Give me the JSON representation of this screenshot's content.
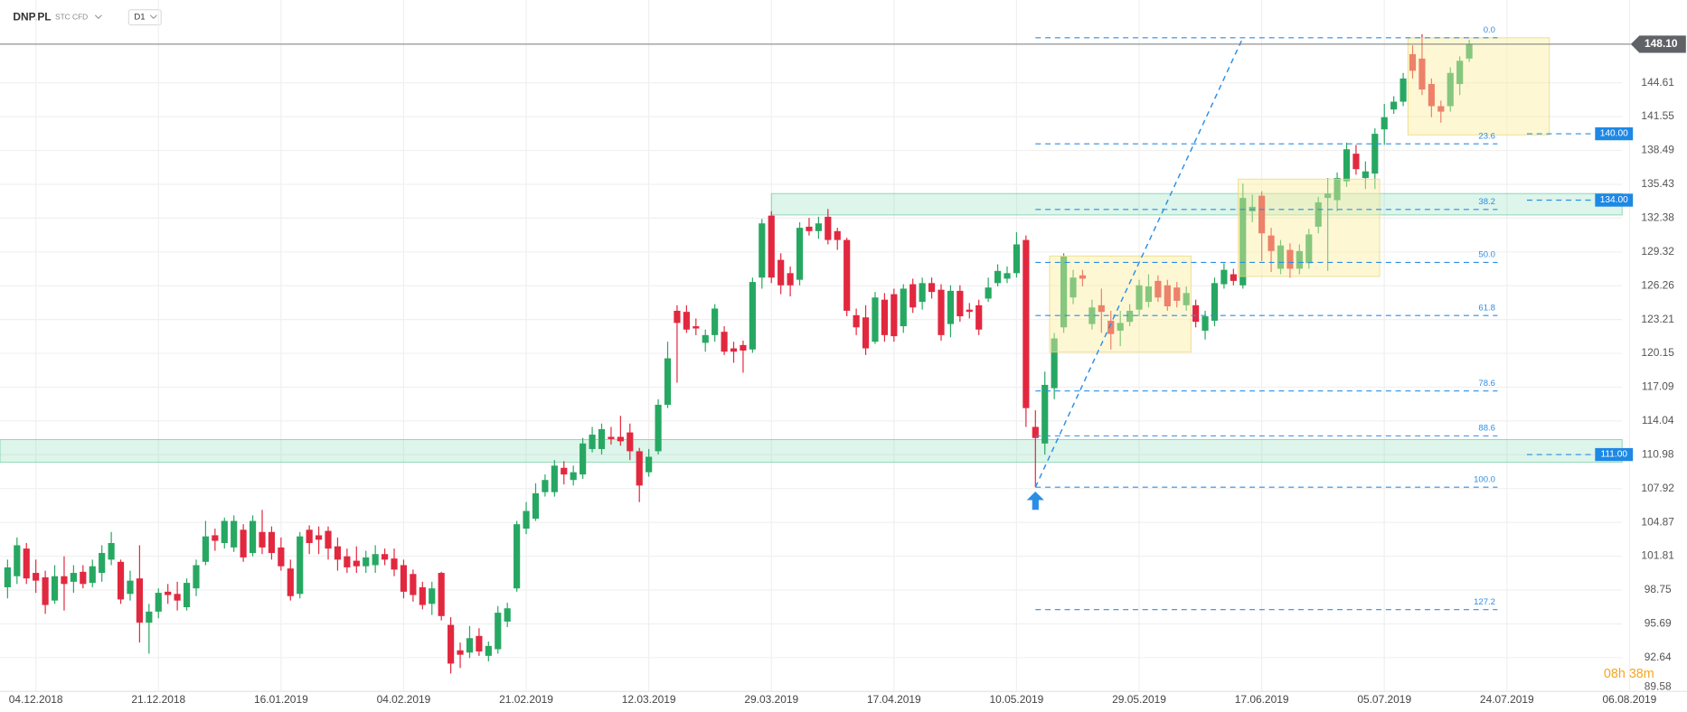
{
  "header": {
    "symbol": "DNP.PL",
    "instrument": "STC CFD",
    "timeframe": "D1",
    "countdown": "08h 38m"
  },
  "chart_data": {
    "type": "candlestick",
    "up_color": "#27a862",
    "down_color": "#e2283f",
    "grid": true,
    "categories": [
      null,
      null,
      null,
      "04.12.2018",
      null,
      null,
      null,
      null,
      null,
      null,
      null,
      null,
      null,
      null,
      null,
      null,
      "21.12.2018",
      null,
      null,
      null,
      null,
      null,
      null,
      null,
      null,
      null,
      null,
      null,
      null,
      "16.01.2019",
      null,
      null,
      null,
      null,
      null,
      null,
      null,
      null,
      null,
      null,
      null,
      null,
      "04.02.2019",
      null,
      null,
      null,
      null,
      null,
      null,
      null,
      null,
      null,
      null,
      null,
      null,
      "21.02.2019",
      null,
      null,
      null,
      null,
      null,
      null,
      null,
      null,
      null,
      null,
      null,
      null,
      "12.03.2019",
      null,
      null,
      null,
      null,
      null,
      null,
      null,
      null,
      null,
      null,
      null,
      null,
      "29.03.2019",
      null,
      null,
      null,
      null,
      null,
      null,
      null,
      null,
      null,
      null,
      null,
      null,
      "17.04.2019",
      null,
      null,
      null,
      null,
      null,
      null,
      null,
      null,
      null,
      null,
      null,
      null,
      "10.05.2019",
      null,
      null,
      null,
      null,
      null,
      null,
      null,
      null,
      null,
      null,
      null,
      null,
      "29.05.2019",
      null,
      null,
      null,
      null,
      null,
      null,
      null,
      null,
      null,
      null,
      null,
      null,
      "17.06.2019",
      null,
      null,
      null,
      null,
      null,
      null,
      null,
      null,
      null,
      null,
      null,
      null,
      "05.07.2019",
      null,
      null,
      null,
      null,
      null,
      null,
      null,
      null,
      null,
      null,
      null,
      null,
      "24.07.2019",
      null,
      null,
      null,
      null,
      null,
      null,
      null,
      null,
      null,
      null,
      null,
      null,
      "06.08.2019"
    ],
    "open": [
      99.0,
      100.0,
      102.5,
      100.3,
      99.9,
      97.8,
      100.0,
      99.5,
      100.4,
      99.4,
      100.3,
      101.5,
      101.3,
      98.4,
      99.8,
      95.8,
      96.8,
      98.6,
      98.4,
      97.2,
      98.9,
      101.3,
      103.7,
      103.0,
      102.6,
      104.2,
      102.1,
      104.0,
      104.0,
      102.6,
      100.7,
      98.4,
      104.2,
      103.7,
      104.1,
      102.7,
      101.8,
      101.4,
      100.9,
      101.0,
      102.0,
      101.6,
      101.0,
      100.2,
      99.0,
      97.5,
      100.3,
      95.6,
      93.3,
      93.1,
      94.6,
      92.8,
      93.4,
      95.9,
      98.9,
      104.3,
      105.2,
      107.6,
      107.6,
      109.8,
      108.7,
      109.2,
      111.5,
      111.5,
      112.6,
      112.6,
      113.0,
      111.3,
      109.4,
      111.3,
      115.5,
      124.0,
      123.9,
      122.6,
      121.1,
      121.8,
      122.1,
      120.6,
      120.9,
      120.5,
      127.0,
      132.6,
      128.6,
      127.4,
      126.8,
      131.6,
      131.2,
      132.5,
      131.2,
      130.4,
      123.6,
      123.4,
      121.2,
      125.0,
      125.5,
      122.6,
      126.4,
      124.8,
      126.5,
      125.9,
      122.8,
      125.8,
      124.1,
      124.5,
      125.1,
      126.5,
      126.9,
      127.4,
      130.4,
      113.5,
      112.0,
      117.0,
      122.5,
      125.2,
      127.2,
      122.8,
      124.5,
      123.1,
      122.2,
      123.0,
      124.1,
      124.8,
      126.7,
      126.3,
      126.1,
      124.5,
      124.5,
      122.2,
      123.1,
      126.4,
      127.3,
      126.3,
      133.0,
      134.4,
      130.8,
      127.8,
      129.5,
      127.8,
      128.3,
      131.6,
      134.2,
      134.0,
      135.7,
      138.2,
      136.0,
      136.4,
      140.4,
      142.2,
      142.9,
      147.2,
      146.8,
      144.5,
      142.5,
      142.5,
      144.5,
      146.8,
      null,
      null,
      null,
      null,
      null,
      null,
      null,
      null,
      null,
      null,
      null,
      null,
      null,
      null,
      null,
      null,
      null
    ],
    "high": [
      101.5,
      103.5,
      103.0,
      101.5,
      100.5,
      101.0,
      101.8,
      101.0,
      101.0,
      101.5,
      102.8,
      104.0,
      101.5,
      100.5,
      102.8,
      97.5,
      98.9,
      99.3,
      99.5,
      99.8,
      101.5,
      105.0,
      104.3,
      105.3,
      105.5,
      104.7,
      105.5,
      106.0,
      104.5,
      103.5,
      101.5,
      104.0,
      104.6,
      104.5,
      104.5,
      103.5,
      102.5,
      102.7,
      102.3,
      102.8,
      102.5,
      102.5,
      101.5,
      100.6,
      99.5,
      99.5,
      100.4,
      96.3,
      94.0,
      95.5,
      95.3,
      94.1,
      97.3,
      97.6,
      105.0,
      106.7,
      108.4,
      109.2,
      110.5,
      110.4,
      110.0,
      112.5,
      113.5,
      113.8,
      113.5,
      114.5,
      113.8,
      111.6,
      111.5,
      116.0,
      121.2,
      124.5,
      124.5,
      123.3,
      122.3,
      124.6,
      122.6,
      121.2,
      121.3,
      127.0,
      132.3,
      133.0,
      129.2,
      128.0,
      132.0,
      132.4,
      132.5,
      133.2,
      131.5,
      130.6,
      124.2,
      124.5,
      125.7,
      125.6,
      126.0,
      126.4,
      126.9,
      127.0,
      127.0,
      126.4,
      126.3,
      126.3,
      124.7,
      125.0,
      127.0,
      128.2,
      128.0,
      131.1,
      130.8,
      115.0,
      118.5,
      122.0,
      129.2,
      127.7,
      127.7,
      125.0,
      126.0,
      124.0,
      124.0,
      124.6,
      126.8,
      127.3,
      127.2,
      126.8,
      126.6,
      126.2,
      125.0,
      124.0,
      127.0,
      128.3,
      127.8,
      135.5,
      134.5,
      134.8,
      131.5,
      130.4,
      130.1,
      130.0,
      131.4,
      134.3,
      136.0,
      136.5,
      139.2,
      139.0,
      137.5,
      140.5,
      142.7,
      143.4,
      145.5,
      148.0,
      149.0,
      145.0,
      143.0,
      146.0,
      147.0,
      148.5,
      null,
      null,
      null,
      null,
      null,
      null,
      null,
      null,
      null,
      null,
      null,
      null,
      null,
      null,
      null,
      null,
      null
    ],
    "low": [
      98.0,
      99.3,
      99.3,
      98.5,
      96.6,
      97.5,
      96.9,
      98.5,
      98.9,
      99.0,
      99.5,
      101.0,
      97.5,
      97.8,
      94.0,
      93.0,
      96.2,
      97.5,
      96.9,
      96.9,
      98.2,
      101.0,
      102.3,
      102.5,
      102.2,
      101.3,
      101.8,
      102.0,
      101.5,
      100.5,
      97.8,
      98.0,
      102.0,
      102.0,
      101.5,
      100.5,
      100.3,
      100.3,
      100.3,
      100.3,
      101.0,
      100.0,
      98.0,
      97.7,
      97.0,
      96.5,
      96.0,
      91.2,
      91.7,
      92.6,
      92.8,
      92.3,
      93.0,
      95.4,
      98.6,
      103.8,
      105.0,
      107.2,
      107.2,
      108.3,
      108.2,
      108.8,
      111.2,
      111.0,
      111.9,
      111.8,
      110.5,
      106.7,
      109.0,
      111.0,
      115.2,
      117.5,
      122.0,
      121.8,
      120.3,
      121.2,
      120.0,
      119.3,
      118.4,
      120.2,
      126.0,
      126.5,
      125.5,
      125.3,
      126.3,
      130.8,
      130.5,
      130.0,
      129.5,
      123.5,
      121.8,
      120.0,
      121.0,
      121.2,
      121.2,
      122.0,
      123.8,
      124.1,
      125.1,
      121.3,
      121.6,
      123.0,
      123.3,
      121.8,
      124.8,
      126.2,
      126.5,
      127.0,
      113.5,
      108.05,
      111.0,
      116.0,
      122.0,
      124.6,
      126.2,
      122.3,
      122.0,
      120.5,
      120.8,
      122.6,
      123.5,
      124.3,
      124.8,
      124.0,
      124.3,
      124.0,
      122.5,
      121.4,
      122.6,
      126.0,
      126.3,
      126.0,
      132.0,
      128.5,
      127.5,
      127.3,
      127.0,
      127.3,
      127.8,
      131.0,
      127.6,
      133.0,
      135.2,
      136.3,
      135.0,
      135.0,
      139.0,
      141.8,
      142.5,
      145.0,
      143.5,
      141.5,
      141.0,
      142.0,
      143.5,
      146.5,
      null,
      null,
      null,
      null,
      null,
      null,
      null,
      null,
      null,
      null,
      null,
      null,
      null,
      null,
      null,
      null,
      null
    ],
    "close": [
      100.8,
      102.8,
      99.8,
      99.6,
      97.4,
      100.0,
      99.3,
      100.3,
      99.3,
      100.9,
      102.1,
      103.0,
      97.9,
      99.6,
      95.8,
      96.8,
      98.5,
      98.3,
      97.8,
      99.4,
      101.0,
      103.6,
      103.2,
      105.0,
      105.0,
      101.7,
      105.0,
      102.6,
      102.1,
      100.9,
      98.2,
      103.6,
      103.0,
      103.3,
      102.5,
      101.5,
      100.8,
      100.9,
      101.7,
      102.0,
      101.5,
      100.6,
      98.6,
      98.3,
      97.4,
      98.9,
      96.4,
      92.1,
      92.9,
      94.4,
      93.2,
      93.7,
      96.7,
      97.1,
      104.7,
      105.9,
      107.5,
      108.7,
      110.0,
      109.2,
      109.4,
      112.0,
      112.8,
      113.3,
      112.4,
      112.2,
      111.3,
      108.2,
      110.8,
      115.5,
      119.7,
      122.9,
      122.3,
      122.4,
      121.8,
      124.2,
      120.3,
      120.3,
      120.4,
      126.6,
      131.9,
      127.0,
      126.3,
      126.3,
      131.5,
      131.2,
      131.9,
      130.4,
      130.4,
      124.0,
      122.5,
      120.6,
      125.2,
      121.8,
      121.7,
      126.0,
      124.3,
      126.5,
      125.7,
      121.8,
      125.8,
      123.5,
      123.9,
      122.3,
      126.1,
      127.6,
      127.4,
      130.0,
      115.2,
      112.5,
      117.3,
      121.5,
      128.9,
      127.0,
      126.9,
      124.3,
      123.9,
      121.9,
      122.9,
      124.0,
      126.3,
      126.2,
      125.2,
      124.4,
      124.9,
      125.6,
      123.0,
      123.5,
      126.5,
      127.7,
      126.7,
      134.2,
      133.4,
      131.0,
      129.4,
      129.9,
      127.8,
      129.4,
      130.9,
      133.8,
      134.6,
      136.0,
      138.6,
      136.8,
      136.6,
      140.0,
      141.5,
      142.9,
      145.0,
      145.7,
      144.0,
      142.5,
      142.0,
      145.5,
      146.6,
      148.1,
      null,
      null,
      null,
      null,
      null,
      null,
      null,
      null,
      null,
      null,
      null,
      null,
      null,
      null,
      null,
      null,
      null
    ],
    "ylim": [
      89.58,
      151.9
    ],
    "yticks": [
      144.61,
      141.55,
      138.49,
      135.43,
      132.38,
      129.32,
      126.26,
      123.21,
      120.15,
      117.09,
      114.04,
      110.98,
      107.92,
      104.87,
      101.81,
      98.75,
      95.69,
      92.64,
      89.58
    ],
    "current_price": {
      "value": 148.1,
      "label": "148.10"
    },
    "levels": [
      {
        "value": 140,
        "label": "140.00"
      },
      {
        "value": 134,
        "label": "134.00"
      },
      {
        "value": 111,
        "label": "111.00"
      }
    ],
    "zones": [
      {
        "low": 110.3,
        "high": 112.35,
        "from": 0
      },
      {
        "low": 132.66,
        "high": 134.6,
        "from": 81
      }
    ],
    "boxes": [
      {
        "x": [
          110.5,
          125.5
        ],
        "y": [
          120.26,
          128.95
        ]
      },
      {
        "x": [
          130.5,
          145.5
        ],
        "y": [
          127.1,
          135.9
        ]
      },
      {
        "x": [
          148.5,
          163.5
        ],
        "y": [
          139.9,
          148.68
        ]
      }
    ],
    "trendline": {
      "x": [
        109,
        131
      ],
      "y": [
        108.05,
        148.68
      ]
    },
    "fibonacci": {
      "labels": [
        "0.0",
        "23.6",
        "38.2",
        "50.0",
        "61.8",
        "78.6",
        "88.6",
        "100.0",
        "127.2"
      ],
      "prices": [
        148.68,
        139.09,
        133.16,
        128.37,
        123.57,
        116.75,
        112.69,
        108.05,
        96.98
      ],
      "x": [
        109,
        158
      ]
    }
  }
}
